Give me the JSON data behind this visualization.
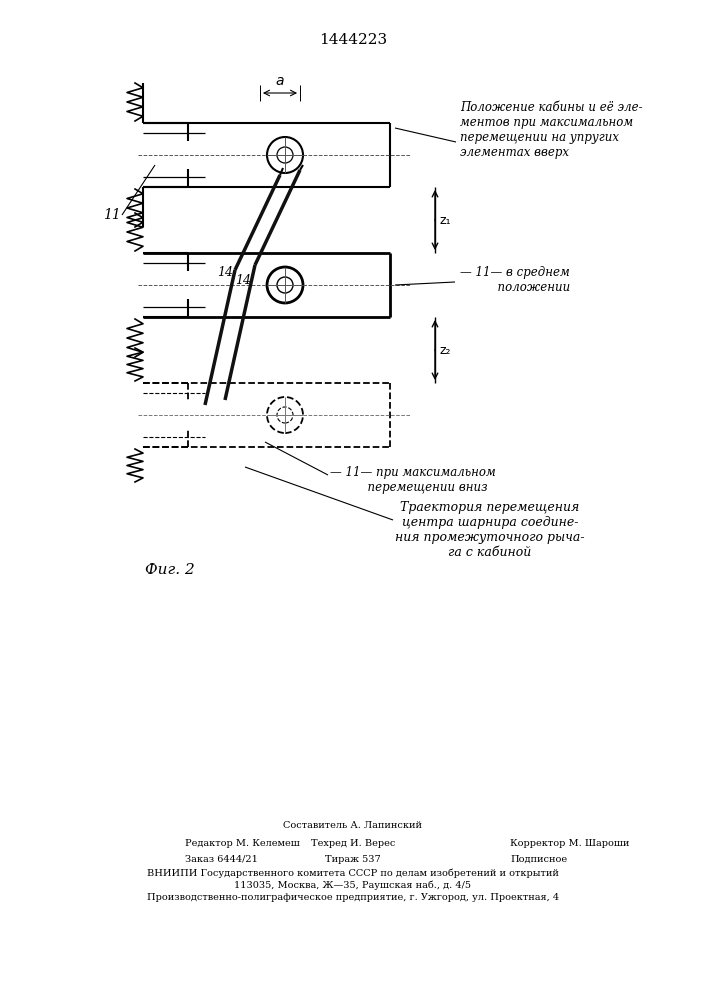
{
  "patent_number": "1444223",
  "background_color": "#ffffff",
  "line_color": "#000000",
  "fig_label": "Фиг. 2",
  "annotation_1": "Положение кабины и её эле-\nментов при максимальном\nперемещении на упругих\nэлементах вверх",
  "annotation_2": "— 11— в среднем\n          положении",
  "annotation_3": "— 11— при максимальном\n          перемещении вниз",
  "annotation_4": "Траектория перемещения\nцентра шарнира соедине-\nния промежуточного рыча-\nга с кабиной",
  "label_11": "11",
  "label_14a": "14",
  "label_14b": "14",
  "label_z1": "z₁",
  "label_z2": "z₂",
  "label_alpha": "a",
  "footer_line1": "Составитель А. Лапинский",
  "footer_line2_left": "Редактор М. Келемеш",
  "footer_line2_mid": "Техред И. Верес",
  "footer_line2_right": "Корректор М. Шароши",
  "footer_line3_left": "Заказ 6444/21",
  "footer_line3_mid": "Тираж 537",
  "footer_line3_right": "Подписное",
  "footer_line4": "ВНИИПИ Государственного комитета СССР по делам изобретений и открытий",
  "footer_line5": "113035, Москва, Ж—35, Раушская наб., д. 4/5",
  "footer_line6": "Производственно-полиграфическое предприятие, г. Ужгород, ул. Проектная, 4"
}
